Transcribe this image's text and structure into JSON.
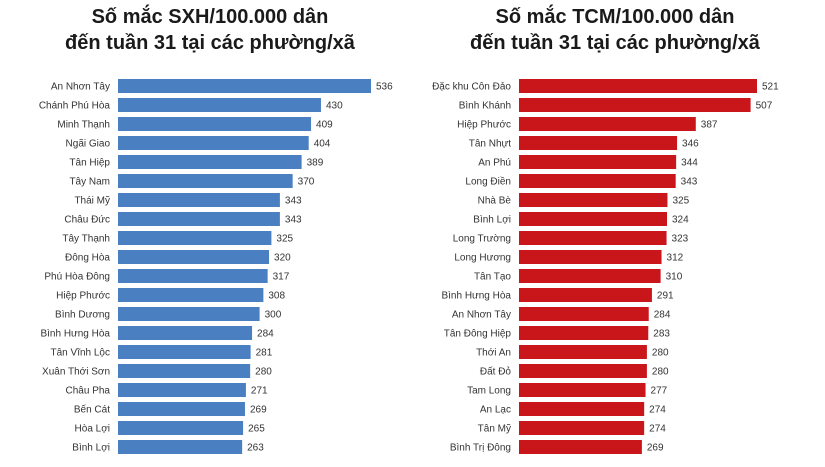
{
  "chart_data": [
    {
      "type": "bar",
      "orientation": "horizontal",
      "title_line1": "Số mắc SXH/100.000 dân",
      "title_line2": "đến tuần 31 tại các phường/xã",
      "color": "#4a7fc1",
      "categories": [
        "An Nhơn Tây",
        "Chánh Phú Hòa",
        "Minh Thạnh",
        "Ngãi Giao",
        "Tân Hiệp",
        "Tây Nam",
        "Thái Mỹ",
        "Châu Đức",
        "Tây Thạnh",
        "Đông Hòa",
        "Phú Hòa Đông",
        "Hiệp Phước",
        "Bình Dương",
        "Bình Hưng Hòa",
        "Tân Vĩnh Lộc",
        "Xuân Thới Sơn",
        "Châu Pha",
        "Bến Cát",
        "Hòa Lợi",
        "Bình Lợi"
      ],
      "values": [
        536,
        430,
        409,
        404,
        389,
        370,
        343,
        343,
        325,
        320,
        317,
        308,
        300,
        284,
        281,
        280,
        271,
        269,
        265,
        263
      ],
      "xlim": [
        0,
        536
      ]
    },
    {
      "type": "bar",
      "orientation": "horizontal",
      "title_line1": "Số mắc TCM/100.000 dân",
      "title_line2": "đến tuần 31 tại các phường/xã",
      "color": "#c9161b",
      "categories": [
        "Đặc khu Côn Đảo",
        "Bình Khánh",
        "Hiệp Phước",
        "Tân Nhựt",
        "An Phú",
        "Long Điền",
        "Nhà Bè",
        "Bình Lợi",
        "Long Trường",
        "Long Hương",
        "Tân Tạo",
        "Bình Hưng Hòa",
        "An Nhơn Tây",
        "Tân Đông Hiệp",
        "Thới An",
        "Đất Đỏ",
        "Tam Long",
        "An Lạc",
        "Tân Mỹ",
        "Bình Trị Đông"
      ],
      "values": [
        521,
        507,
        387,
        346,
        344,
        343,
        325,
        324,
        323,
        312,
        310,
        291,
        284,
        283,
        280,
        280,
        277,
        274,
        274,
        269
      ],
      "xlim": [
        0,
        521
      ]
    }
  ]
}
